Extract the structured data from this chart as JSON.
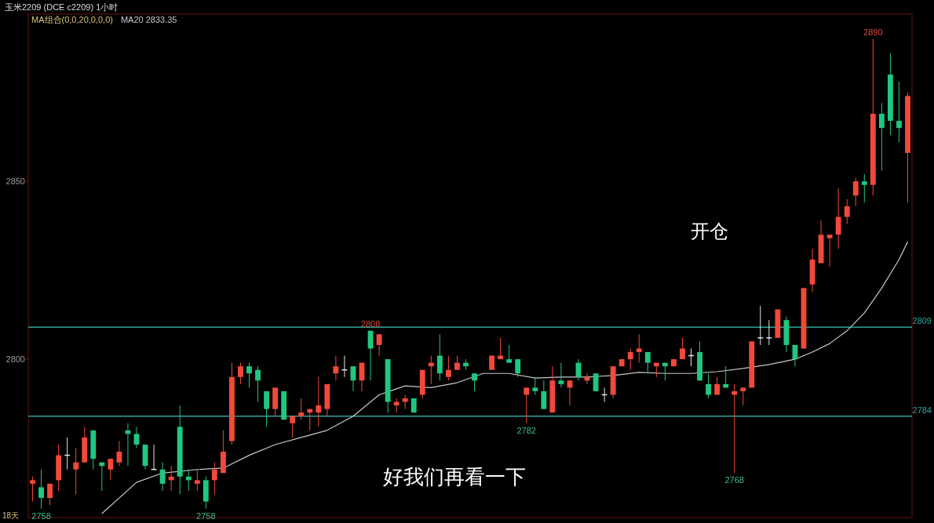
{
  "chart_data": {
    "type": "candlestick",
    "title": "玉米2209 (DCE c2209)  1小时",
    "subtitle": "MA组合(0,0,20,0,0,0)",
    "categories": [
      null,
      null,
      null,
      null,
      null,
      null,
      null,
      null,
      null,
      null,
      null,
      null,
      null,
      null,
      null,
      null,
      null,
      null,
      null,
      null,
      null,
      null,
      null,
      null,
      null,
      null,
      null,
      null,
      null,
      null,
      null,
      null,
      null,
      null,
      null,
      null,
      null,
      null,
      null,
      null,
      null,
      null,
      null,
      null,
      null,
      null,
      null,
      null,
      null,
      null,
      null,
      null,
      null,
      null,
      null,
      null,
      null,
      null,
      null,
      null,
      null,
      null,
      null,
      null,
      null,
      null,
      null,
      null,
      null,
      null,
      null,
      null,
      null,
      null,
      null,
      null,
      null,
      null,
      null,
      null,
      null,
      null,
      null,
      null,
      null,
      null,
      null,
      null,
      null,
      null,
      null,
      null,
      null,
      null,
      null,
      null,
      null,
      null,
      null,
      null,
      null,
      null
    ],
    "ohlc": [
      [
        2765,
        2767,
        2760,
        2766
      ],
      [
        2764,
        2769,
        2758,
        2761
      ],
      [
        2761,
        2765,
        2759,
        2765
      ],
      [
        2766,
        2776,
        2763,
        2773
      ],
      [
        2773,
        2778,
        2769,
        2773
      ],
      [
        2769,
        2775,
        2762,
        2771
      ],
      [
        2771,
        2781,
        2771,
        2778
      ],
      [
        2780,
        2780,
        2769,
        2772
      ],
      [
        2771,
        2771,
        2763,
        2770
      ],
      [
        2769,
        2772,
        2766,
        2772
      ],
      [
        2771,
        2777,
        2770,
        2774
      ],
      [
        2780,
        2782,
        2770,
        2779
      ],
      [
        2779,
        2781,
        2775,
        2776
      ],
      [
        2776,
        2776,
        2769,
        2770
      ],
      [
        2769,
        2776,
        2769,
        2769
      ],
      [
        2769,
        2771,
        2763,
        2765
      ],
      [
        2766,
        2770,
        2763,
        2767
      ],
      [
        2781,
        2787,
        2762,
        2767
      ],
      [
        2767,
        2769,
        2763,
        2766
      ],
      [
        2765,
        2769,
        2763,
        2766
      ],
      [
        2766,
        2767,
        2758,
        2760
      ],
      [
        2766,
        2771,
        2762,
        2769
      ],
      [
        2768,
        2780,
        2768,
        2774
      ],
      [
        2777,
        2799,
        2776,
        2795
      ],
      [
        2795,
        2799,
        2793,
        2798
      ],
      [
        2798,
        2799,
        2792,
        2796
      ],
      [
        2797,
        2798,
        2788,
        2794
      ],
      [
        2791,
        2791,
        2781,
        2786
      ],
      [
        2786,
        2792,
        2784,
        2792
      ],
      [
        2791,
        2791,
        2783,
        2783
      ],
      [
        2782,
        2784,
        2778,
        2784
      ],
      [
        2784,
        2789,
        2783,
        2785
      ],
      [
        2785,
        2786,
        2780,
        2786
      ],
      [
        2785,
        2795,
        2781,
        2787
      ],
      [
        2786,
        2793,
        2784,
        2793
      ],
      [
        2796,
        2801,
        2794,
        2798
      ],
      [
        2797,
        2801,
        2795,
        2797
      ],
      [
        2798,
        2798,
        2791,
        2794
      ],
      [
        2794,
        2799,
        2791,
        2799
      ],
      [
        2808,
        2808,
        2794,
        2803
      ],
      [
        2804,
        2807,
        2801,
        2807
      ],
      [
        2800,
        2800,
        2785,
        2788
      ],
      [
        2787,
        2789,
        2785,
        2788
      ],
      [
        2788,
        2790,
        2786,
        2789
      ],
      [
        2789,
        2789,
        2785,
        2785
      ],
      [
        2790,
        2797,
        2789,
        2797
      ],
      [
        2798,
        2801,
        2793,
        2799
      ],
      [
        2801,
        2807,
        2794,
        2796
      ],
      [
        2795,
        2801,
        2794,
        2797
      ],
      [
        2797,
        2801,
        2797,
        2799
      ],
      [
        2799,
        2800,
        2797,
        2798
      ],
      [
        2796,
        2796,
        2791,
        2794
      ],
      null,
      [
        2797,
        2801,
        2797,
        2801
      ],
      [
        2800,
        2806,
        2800,
        2801
      ],
      [
        2800,
        2804,
        2799,
        2799
      ],
      [
        2800,
        2800,
        2795,
        2796
      ],
      [
        2790,
        2792,
        2782,
        2792
      ],
      [
        2792,
        2795,
        2790,
        2791
      ],
      [
        2791,
        2794,
        2786,
        2786
      ],
      [
        2785,
        2798,
        2785,
        2794
      ],
      [
        2794,
        2799,
        2792,
        2793
      ],
      [
        2792,
        2794,
        2787,
        2794
      ],
      [
        2799,
        2800,
        2794,
        2795
      ],
      [
        2794,
        2796,
        2793,
        2795
      ],
      [
        2796,
        2796,
        2791,
        2791
      ],
      [
        2790,
        2792,
        2788,
        2790
      ],
      [
        2790,
        2798,
        2789,
        2798
      ],
      [
        2798,
        2800,
        2798,
        2800
      ],
      [
        2800,
        2803,
        2797,
        2802
      ],
      [
        2802,
        2807,
        2799,
        2803
      ],
      [
        2802,
        2802,
        2796,
        2799
      ],
      [
        2798,
        2799,
        2795,
        2799
      ],
      [
        2799,
        2799,
        2794,
        2798
      ],
      [
        2798,
        2800,
        2798,
        2800
      ],
      [
        2800,
        2806,
        2800,
        2803
      ],
      [
        2801,
        2803,
        2798,
        2801
      ],
      [
        2802,
        2805,
        2794,
        2794
      ],
      [
        2793,
        2796,
        2789,
        2790
      ],
      [
        2790,
        2795,
        2790,
        2793
      ],
      [
        2793,
        2798,
        2792,
        2792
      ],
      [
        2790,
        2793,
        2768,
        2791
      ],
      [
        2791,
        2792,
        2787,
        2792
      ],
      [
        2792,
        2805,
        2792,
        2805
      ],
      [
        2806,
        2815,
        2804,
        2806
      ],
      [
        2806,
        2811,
        2804,
        2806
      ],
      [
        2806,
        2814,
        2806,
        2814
      ],
      [
        2811,
        2812,
        2802,
        2804
      ],
      [
        2804,
        2804,
        2798,
        2800
      ],
      [
        2803,
        2820,
        2803,
        2820
      ],
      [
        2821,
        2831,
        2819,
        2828
      ],
      [
        2827,
        2839,
        2827,
        2835
      ],
      [
        2834,
        2835,
        2826,
        2835
      ],
      [
        2835,
        2848,
        2831,
        2840
      ],
      [
        2840,
        2845,
        2838,
        2843
      ],
      [
        2846,
        2851,
        2843,
        2850
      ],
      [
        2850,
        2852,
        2844,
        2849
      ],
      [
        2849,
        2890,
        2846,
        2869
      ],
      [
        2869,
        2872,
        2853,
        2865
      ],
      [
        2880,
        2886,
        2863,
        2867
      ],
      [
        2867,
        2878,
        2861,
        2865
      ],
      [
        2858,
        2875,
        2844,
        2874
      ]
    ],
    "colors": [
      "#f2493a",
      "#20c77f",
      "#f2493a",
      "#f2493a",
      "#e6e6e6",
      "#f2493a",
      "#f2493a",
      "#20c77f",
      "#20c77f",
      "#f2493a",
      "#f2493a",
      "#20c77f",
      "#20c77f",
      "#20c77f",
      "#e6e6e6",
      "#20c77f",
      "#f2493a",
      "#20c77f",
      "#20c77f",
      "#f2493a",
      "#20c77f",
      "#f2493a",
      "#f2493a",
      "#f2493a",
      "#f2493a",
      "#20c77f",
      "#20c77f",
      "#20c77f",
      "#f2493a",
      "#20c77f",
      "#f2493a",
      "#f2493a",
      "#f2493a",
      "#f2493a",
      "#f2493a",
      "#f2493a",
      "#e6e6e6",
      "#20c77f",
      "#f2493a",
      "#20c77f",
      "#f2493a",
      "#20c77f",
      "#f2493a",
      "#f2493a",
      "#20c77f",
      "#f2493a",
      "#f2493a",
      "#20c77f",
      "#f2493a",
      "#f2493a",
      "#20c77f",
      "#20c77f",
      null,
      "#f2493a",
      "#f2493a",
      "#20c77f",
      "#20c77f",
      "#f2493a",
      "#20c77f",
      "#20c77f",
      "#f2493a",
      "#20c77f",
      "#f2493a",
      "#20c77f",
      "#f2493a",
      "#20c77f",
      "#e6e6e6",
      "#f2493a",
      "#f2493a",
      "#f2493a",
      "#f2493a",
      "#20c77f",
      "#f2493a",
      "#20c77f",
      "#f2493a",
      "#f2493a",
      "#e6e6e6",
      "#20c77f",
      "#20c77f",
      "#f2493a",
      "#20c77f",
      "#f2493a",
      "#f2493a",
      "#f2493a",
      "#e6e6e6",
      "#e6e6e6",
      "#f2493a",
      "#20c77f",
      "#20c77f",
      "#f2493a",
      "#f2493a",
      "#f2493a",
      "#f2493a",
      "#f2493a",
      "#f2493a",
      "#f2493a",
      "#20c77f",
      "#f2493a",
      "#20c77f",
      "#20c77f",
      "#20c77f",
      "#f2493a"
    ],
    "series": [
      {
        "name": "MA20 2833.35",
        "type": "line",
        "color": "#c8c8c8",
        "values": [
          null,
          null,
          null,
          null,
          null,
          null,
          null,
          null,
          2756.6,
          null,
          null,
          null,
          2765.4,
          null,
          null,
          2768,
          null,
          null,
          null,
          2769,
          null,
          null,
          2769.4,
          null,
          null,
          2773,
          null,
          null,
          2776,
          null,
          null,
          2778,
          null,
          null,
          2780,
          null,
          null,
          2784,
          null,
          null,
          2790,
          null,
          null,
          2792.5,
          null,
          null,
          2792,
          null,
          null,
          2793.4,
          null,
          null,
          2796,
          null,
          null,
          2796,
          null,
          null,
          2794.7,
          null,
          null,
          2795,
          null,
          null,
          2795,
          null,
          null,
          2795.4,
          null,
          null,
          2796.3,
          null,
          null,
          2796,
          null,
          null,
          2796,
          null,
          null,
          2796.5,
          null,
          null,
          2797.4,
          null,
          null,
          2798.5,
          null,
          null,
          2800,
          null,
          2802,
          null,
          2804.4,
          null,
          2808,
          null,
          2813,
          null,
          2820,
          null,
          2828,
          2833
        ]
      }
    ],
    "ylim": [
      2755.5,
      2897
    ],
    "yticks": [
      2800,
      2850
    ],
    "tick_labels": "y",
    "ref_lines": [
      {
        "axis": "y",
        "value": 2809,
        "label": "2809",
        "color": "#2fa39c"
      },
      {
        "axis": "y",
        "value": 2784,
        "label": "2784",
        "color": "#2fa39c"
      }
    ],
    "annotations": [
      {
        "text": "2890",
        "y": 2890
      },
      {
        "text": "2808",
        "y": 2808
      },
      {
        "text": "2782",
        "y": 2782
      },
      {
        "text": "2768",
        "y": 2768
      },
      {
        "text": "2758",
        "y": 2758
      },
      {
        "text": "2758",
        "y": 2758
      },
      "开仓",
      "好我们再看一下",
      "18天"
    ]
  }
}
